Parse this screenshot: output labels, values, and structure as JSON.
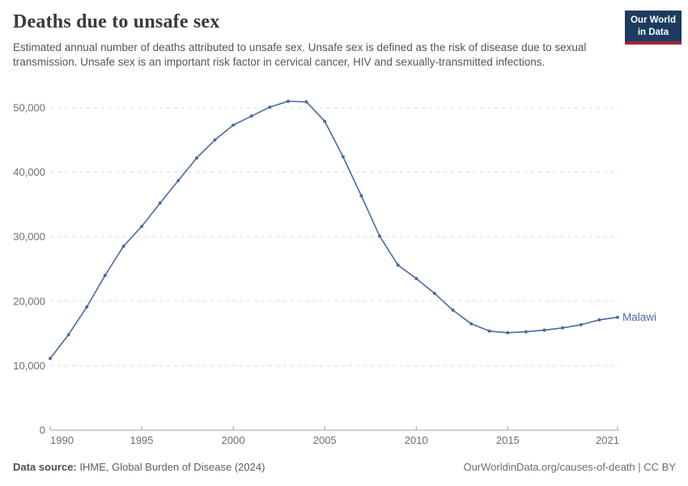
{
  "header": {
    "title": "Deaths due to unsafe sex",
    "subtitle": "Estimated annual number of deaths attributed to unsafe sex. Unsafe sex is defined as the risk of disease due to sexual transmission. Unsafe sex is an important risk factor in cervical cancer, HIV and sexually-transmitted infections.",
    "logo": {
      "line1": "Our World",
      "line2": "in Data",
      "bg_color": "#1d3b61",
      "bar_color": "#a12639"
    }
  },
  "chart_data": {
    "type": "line",
    "title": "Deaths due to unsafe sex",
    "x": [
      1990,
      1991,
      1992,
      1993,
      1994,
      1995,
      1996,
      1997,
      1998,
      1999,
      2000,
      2001,
      2002,
      2003,
      2004,
      2005,
      2006,
      2007,
      2008,
      2009,
      2010,
      2011,
      2012,
      2013,
      2014,
      2015,
      2016,
      2017,
      2018,
      2019,
      2020,
      2021
    ],
    "series": [
      {
        "name": "Malawi",
        "color": "#4C6A9C",
        "values": [
          11100,
          14800,
          19100,
          24000,
          28500,
          31600,
          35200,
          38700,
          42200,
          45000,
          47300,
          48700,
          50100,
          51000,
          50900,
          47900,
          42400,
          36350,
          30100,
          25600,
          23500,
          21200,
          18600,
          16500,
          15350,
          15100,
          15250,
          15500,
          15850,
          16350,
          17100,
          17500
        ]
      }
    ],
    "end_label": "Malawi",
    "xticks": [
      1990,
      1995,
      2000,
      2005,
      2010,
      2015,
      2021
    ],
    "yticks": [
      0,
      10000,
      20000,
      30000,
      40000,
      50000
    ],
    "ytick_labels": [
      "0",
      "10,000",
      "20,000",
      "30,000",
      "40,000",
      "50,000"
    ],
    "xlim": [
      1990,
      2021
    ],
    "ylim": [
      0,
      51500
    ],
    "grid": "horizontal-dashed",
    "grid_color": "#dcdcdc",
    "axis_color": "#a3a3a3",
    "tick_label_color": "#6f6f6f"
  },
  "footer": {
    "datasource_label": "Data source:",
    "datasource_value": " IHME, Global Burden of Disease (2024)",
    "credit": "OurWorldinData.org/causes-of-death | CC BY"
  }
}
